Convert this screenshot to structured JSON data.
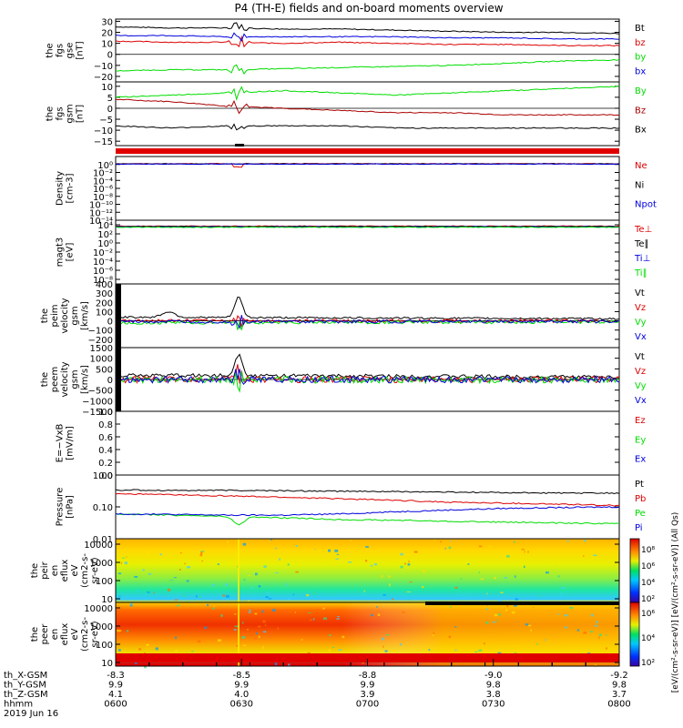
{
  "title": "P4 (TH-E) fields and on-board moments overview",
  "colors": {
    "black": "#000000",
    "red": "#dd0000",
    "green": "#00dd00",
    "blue": "#0000dd",
    "darkred": "#aa0000"
  },
  "chart_data": [
    {
      "type": "line",
      "id": "fgs_gse",
      "ylabel": [
        "the",
        "fgs",
        "gse",
        "[nT]"
      ],
      "ylim": [
        -25,
        32
      ],
      "yticks": [
        "30",
        "20",
        "10",
        "0",
        "−10",
        "−20"
      ],
      "ytick_values": [
        30,
        20,
        10,
        0,
        -10,
        -20
      ],
      "series": [
        {
          "name": "Bt",
          "color": "black",
          "values": [
            25,
            24,
            24,
            23,
            23,
            22,
            21,
            20,
            20,
            19
          ]
        },
        {
          "name": "bz",
          "color": "red",
          "values": [
            12,
            11,
            11,
            10,
            11,
            10,
            9,
            9,
            8,
            8
          ]
        },
        {
          "name": "by",
          "color": "green",
          "values": [
            -15,
            -14,
            -14,
            -13,
            -12,
            -11,
            -10,
            -8,
            -6,
            -5
          ]
        },
        {
          "name": "bx",
          "color": "blue",
          "values": [
            17,
            17,
            16,
            16,
            16,
            16,
            15,
            15,
            14,
            14
          ]
        }
      ]
    },
    {
      "type": "line",
      "id": "fgs_gsm",
      "ylabel": [
        "the",
        "fgs",
        "gsm",
        "[nT]"
      ],
      "ylim": [
        -17,
        12
      ],
      "yticks": [
        "10",
        "5",
        "0",
        "−5",
        "−10",
        "−15"
      ],
      "ytick_values": [
        10,
        5,
        0,
        -5,
        -10,
        -15
      ],
      "series": [
        {
          "name": "By",
          "color": "green",
          "values": [
            5,
            6,
            7,
            8,
            7,
            6,
            7,
            8,
            9,
            10
          ]
        },
        {
          "name": "Bz",
          "color": "darkred",
          "values": [
            4,
            3,
            1,
            0,
            -1,
            -2,
            -2,
            -3,
            -3,
            -3
          ]
        },
        {
          "name": "Bx",
          "color": "black",
          "values": [
            -8,
            -9,
            -8,
            -8,
            -8,
            -9,
            -9,
            -9,
            -9,
            -9
          ]
        }
      ]
    },
    {
      "type": "line",
      "id": "density",
      "ylabel": [
        "Density",
        "[cm-3]"
      ],
      "log": true,
      "ylim": [
        -14,
        2
      ],
      "yticks": [
        "10⁰",
        "10⁻²",
        "10⁻⁴",
        "10⁻⁶",
        "10⁻⁸",
        "10⁻¹⁰",
        "10⁻¹²",
        "10⁻¹⁴"
      ],
      "ytick_values": [
        0,
        -2,
        -4,
        -6,
        -8,
        -10,
        -12,
        -14
      ],
      "series": [
        {
          "name": "Ne",
          "color": "red"
        },
        {
          "name": "Ni",
          "color": "black"
        },
        {
          "name": "Npot",
          "color": "blue"
        }
      ]
    },
    {
      "type": "line",
      "id": "temp",
      "ylabel": [
        "magt3",
        "[eV]"
      ],
      "log": true,
      "ylim": [
        -9,
        5
      ],
      "yticks": [
        "10⁴",
        "10²",
        "10⁰",
        "10⁻²",
        "10⁻⁴",
        "10⁻⁶",
        "10⁻⁸"
      ],
      "ytick_values": [
        4,
        2,
        0,
        -2,
        -4,
        -6,
        -8
      ],
      "series": [
        {
          "name": "Te⊥",
          "color": "red"
        },
        {
          "name": "Te∥",
          "color": "black"
        },
        {
          "name": "Ti⊥",
          "color": "blue"
        },
        {
          "name": "Ti∥",
          "color": "green"
        }
      ]
    },
    {
      "type": "line",
      "id": "peim_vel",
      "ylabel": [
        "the",
        "peim",
        "velocity",
        "gsm",
        "[km/s]"
      ],
      "ylim": [
        -290,
        400
      ],
      "yticks": [
        "400",
        "300",
        "200",
        "100",
        "0",
        "−100",
        "−200"
      ],
      "ytick_values": [
        400,
        300,
        200,
        100,
        0,
        -100,
        -200
      ],
      "series": [
        {
          "name": "Vt",
          "color": "black"
        },
        {
          "name": "Vz",
          "color": "red"
        },
        {
          "name": "Vy",
          "color": "green"
        },
        {
          "name": "Vx",
          "color": "blue"
        }
      ]
    },
    {
      "type": "line",
      "id": "peem_vel",
      "ylabel": [
        "the",
        "peem",
        "velocity",
        "gsm",
        "[km/s]"
      ],
      "ylim": [
        -1500,
        1500
      ],
      "yticks": [
        "1500",
        "1000",
        "500",
        "0",
        "−500",
        "−1000",
        "−1500"
      ],
      "ytick_values": [
        1500,
        1000,
        500,
        0,
        -500,
        -1000,
        -1500
      ],
      "series": [
        {
          "name": "Vt",
          "color": "black"
        },
        {
          "name": "Vz",
          "color": "red"
        },
        {
          "name": "Vy",
          "color": "green"
        },
        {
          "name": "Vx",
          "color": "blue"
        }
      ]
    },
    {
      "type": "line",
      "id": "efield",
      "ylabel": [
        "E=−VxB",
        "[mV/m]"
      ],
      "ylim": [
        0,
        1
      ],
      "yticks": [
        "1.0",
        "0.8",
        "0.6",
        "0.4",
        "0.2",
        "0.0"
      ],
      "ytick_values": [
        1,
        0.8,
        0.6,
        0.4,
        0.2,
        0
      ],
      "series": [
        {
          "name": "Ez",
          "color": "red"
        },
        {
          "name": "Ey",
          "color": "green"
        },
        {
          "name": "Ex",
          "color": "blue"
        }
      ]
    },
    {
      "type": "line",
      "id": "pressure",
      "ylabel": [
        "Pressure",
        "[nPa]"
      ],
      "log": true,
      "ylim": [
        -2,
        0
      ],
      "yticks": [
        "1.00",
        "0.10",
        "0.01"
      ],
      "ytick_values": [
        0,
        -1,
        -2
      ],
      "series": [
        {
          "name": "Pt",
          "color": "black",
          "values": [
            0.34,
            0.33,
            0.33,
            0.32,
            0.31,
            0.3,
            0.29,
            0.28,
            0.27,
            0.27
          ]
        },
        {
          "name": "Pb",
          "color": "red",
          "values": [
            0.26,
            0.24,
            0.22,
            0.2,
            0.18,
            0.16,
            0.14,
            0.13,
            0.12,
            0.11
          ]
        },
        {
          "name": "Pe",
          "color": "green",
          "values": [
            0.06,
            0.055,
            0.05,
            0.045,
            0.04,
            0.038,
            0.035,
            0.033,
            0.031,
            0.03
          ]
        },
        {
          "name": "Pi",
          "color": "blue",
          "values": [
            0.06,
            0.058,
            0.055,
            0.055,
            0.06,
            0.07,
            0.08,
            0.09,
            0.095,
            0.1
          ]
        }
      ]
    },
    {
      "type": "heatmap",
      "id": "peir",
      "ylabel": [
        "the",
        "peir",
        "en",
        "eflux",
        "eV",
        "(cm2-s-",
        "sr-eV)"
      ],
      "yticks": [
        "10000",
        "1000",
        "100",
        "10"
      ],
      "ytick_values": [
        10000,
        1000,
        100,
        10
      ]
    },
    {
      "type": "heatmap",
      "id": "peer",
      "ylabel": [
        "the",
        "peer",
        "en",
        "eflux",
        "eV",
        "(cm2-s-",
        "sr-eV)"
      ],
      "yticks": [
        "10000",
        "1000",
        "100",
        "10"
      ],
      "ytick_values": [
        10000,
        1000,
        100,
        10
      ]
    }
  ],
  "side_labels": {
    "colorbar_label": "[eV/(cm²-s-sr-eV)]  [eV/(cm²-s-sr-eV)] (All Qs)",
    "colorbar1_ticks": [
      "10⁸",
      "10⁶",
      "10⁴",
      "10²"
    ],
    "colorbar2_ticks": [
      "10⁶",
      "10⁴",
      "10²"
    ]
  },
  "xaxis": {
    "row_labels": [
      "th_X-GSM",
      "th_Y-GSM",
      "th_Z-GSM",
      "hhmm",
      "2019 Jun 16"
    ],
    "columns": [
      {
        "x": "-8.3",
        "y": "9.9",
        "z": "4.1",
        "hhmm": "0600"
      },
      {
        "x": "-8.5",
        "y": "9.9",
        "z": "4.0",
        "hhmm": "0630"
      },
      {
        "x": "-8.8",
        "y": "9.9",
        "z": "3.9",
        "hhmm": "0700"
      },
      {
        "x": "-9.0",
        "y": "9.8",
        "z": "3.8",
        "hhmm": "0730"
      },
      {
        "x": "-9.2",
        "y": "9.8",
        "z": "3.7",
        "hhmm": "0800"
      }
    ]
  }
}
